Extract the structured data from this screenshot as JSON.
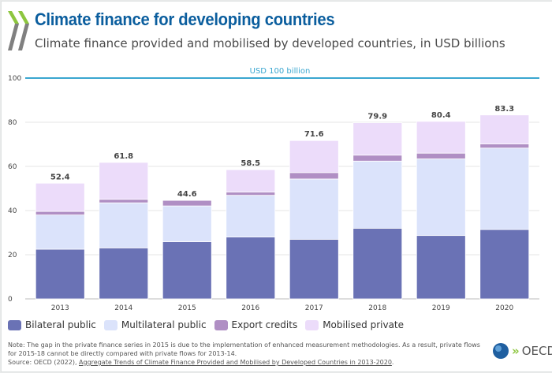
{
  "title": "Climate finance for developing countries",
  "subtitle": "Climate finance provided and mobilised by developed countries, in USD billions",
  "note": "Note: The gap in the private finance series in 2015 is due to the implementation of enhanced measurement methodologies. As a result, private flows for 2015-18 cannot be directly compared with private flows for 2013-14.",
  "source_prefix": "Source: OECD (2022), ",
  "source_link": "Aggregate Trends of Climate Finance Provided and Mobilised by Developed Countries in 2013-2020",
  "source_suffix": ".",
  "logo_text": "OECD",
  "chart_data": {
    "type": "bar",
    "stacked": true,
    "categories": [
      "2013",
      "2014",
      "2015",
      "2016",
      "2017",
      "2018",
      "2019",
      "2020"
    ],
    "series": [
      {
        "name": "Bilateral public",
        "color": "#6a72b5",
        "values": [
          22.5,
          23.1,
          25.9,
          28.0,
          27.0,
          32.0,
          28.7,
          31.4
        ]
      },
      {
        "name": "Multilateral public",
        "color": "#dbe3fb",
        "values": [
          15.5,
          20.4,
          16.2,
          18.9,
          27.3,
          30.4,
          34.7,
          36.9
        ]
      },
      {
        "name": "Export credits",
        "color": "#b08fc4",
        "values": [
          1.6,
          1.6,
          2.5,
          1.5,
          2.9,
          2.7,
          2.6,
          1.9
        ]
      },
      {
        "name": "Mobilised private",
        "color": "#ecdcfa",
        "values": [
          12.8,
          16.7,
          null,
          10.1,
          14.5,
          14.7,
          14.4,
          13.1
        ]
      }
    ],
    "totals": [
      "52.4",
      "61.8",
      "44.6",
      "58.5",
      "71.6",
      "79.9",
      "80.4",
      "83.3"
    ],
    "yticks": [
      0,
      20,
      40,
      60,
      80,
      100
    ],
    "ylim": [
      0,
      100
    ],
    "grid": true,
    "reference_line": {
      "value": 100,
      "label": "USD 100 billion",
      "color": "#3aa6d0"
    },
    "legend_position": "bottom-left"
  }
}
